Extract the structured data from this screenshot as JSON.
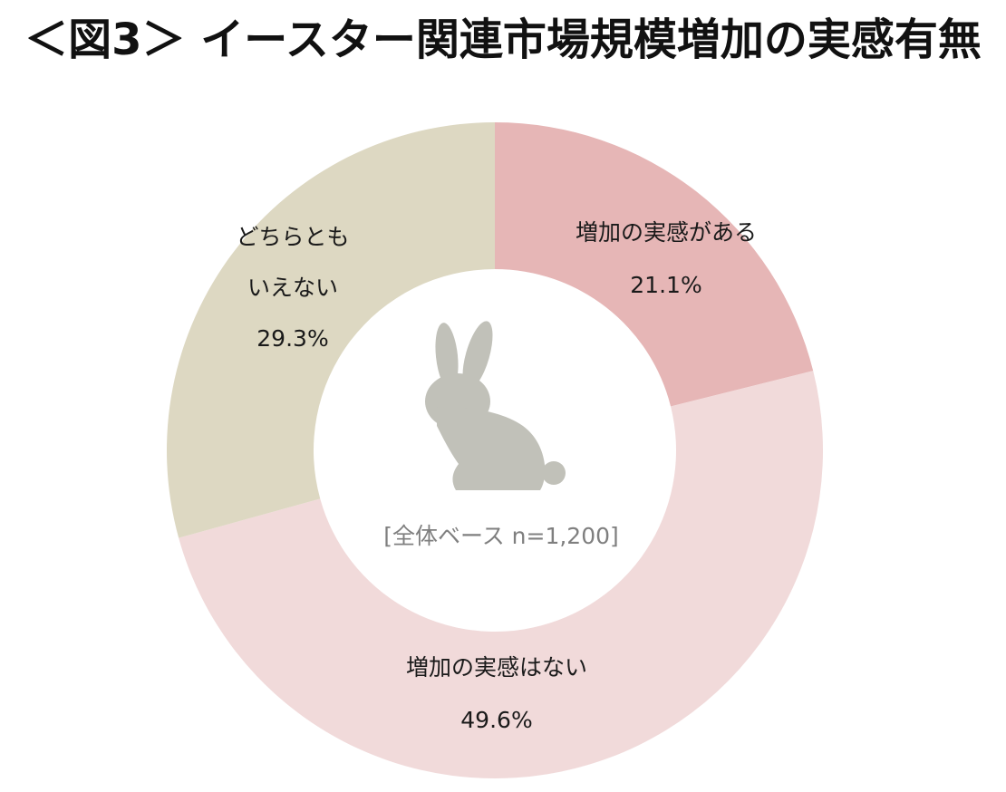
{
  "title": "＜図3＞ イースター関連市場規模増加の実感有無",
  "chart_data": {
    "type": "pie",
    "variant": "donut",
    "start": "top",
    "direction": "clockwise",
    "center_icon": "rabbit-icon",
    "center_label": "[全体ベース n=1,200]",
    "slices": [
      {
        "label_lines": [
          "増加の実感がある"
        ],
        "value": 21.1,
        "value_label": "21.1%",
        "color": "#e6b6b6"
      },
      {
        "label_lines": [
          "増加の実感はない"
        ],
        "value": 49.6,
        "value_label": "49.6%",
        "color": "#f1dada"
      },
      {
        "label_lines": [
          "どちらとも",
          "いえない"
        ],
        "value": 29.3,
        "value_label": "29.3%",
        "color": "#ddd8c2"
      }
    ]
  }
}
